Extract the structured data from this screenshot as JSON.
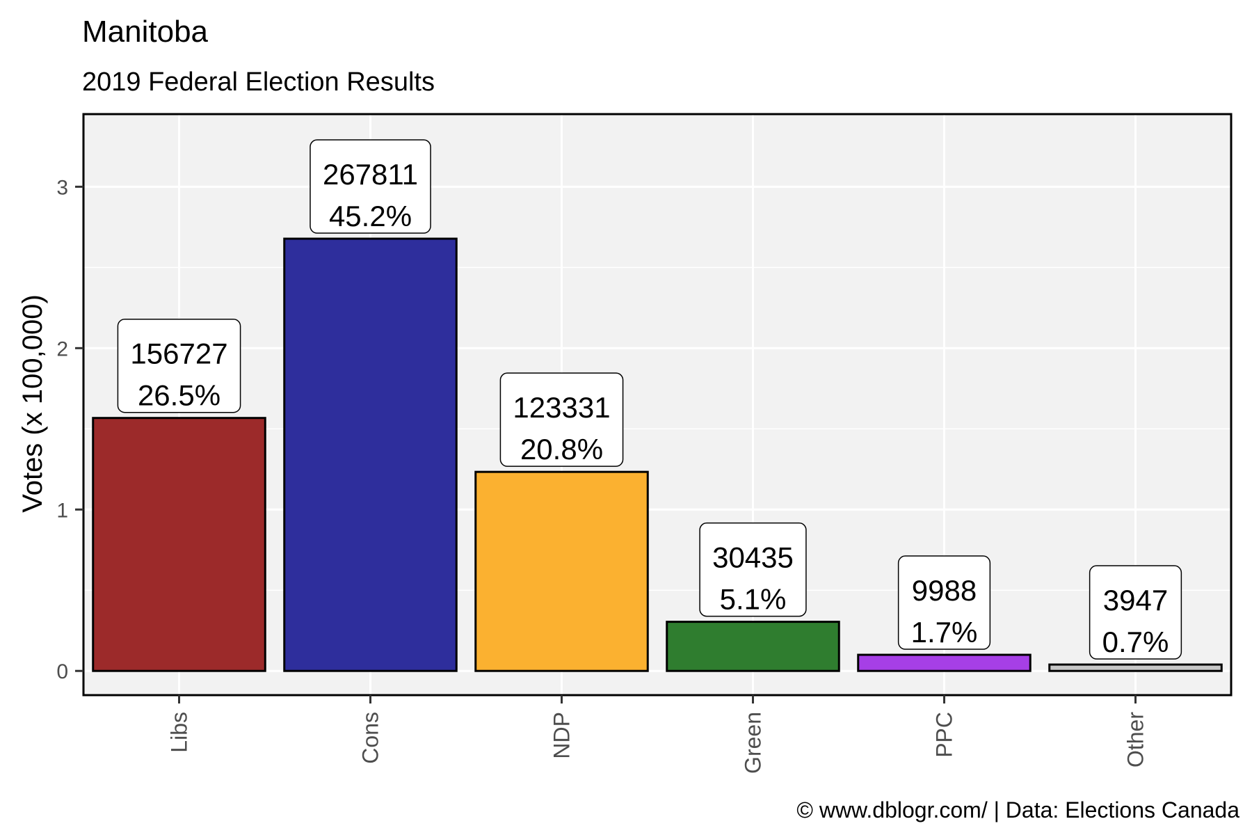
{
  "title": "Manitoba",
  "subtitle": "2019 Federal Election Results",
  "caption": "© www.dblogr.com/  |  Data: Elections Canada",
  "chart_data": {
    "type": "bar",
    "categories": [
      "Libs",
      "Cons",
      "NDP",
      "Green",
      "PPC",
      "Other"
    ],
    "values": [
      1.56727,
      2.67811,
      1.23331,
      0.30435,
      0.09988,
      0.03947
    ],
    "votes_labels": [
      "156727",
      "267811",
      "123331",
      "30435",
      "9988",
      "3947"
    ],
    "percent_labels": [
      "26.5%",
      "45.2%",
      "20.8%",
      "5.1%",
      "1.7%",
      "0.7%"
    ],
    "colors": [
      "#9c2a2a",
      "#2e2e9c",
      "#fbb130",
      "#2f7d2f",
      "#a63fe6",
      "#c7c7c7"
    ],
    "xlabel": "",
    "ylabel": "Votes (x 100,000)",
    "yticks": [
      0,
      1,
      2,
      3
    ],
    "ylim": [
      -0.15,
      3.45
    ],
    "grid": true,
    "legend": "none"
  }
}
